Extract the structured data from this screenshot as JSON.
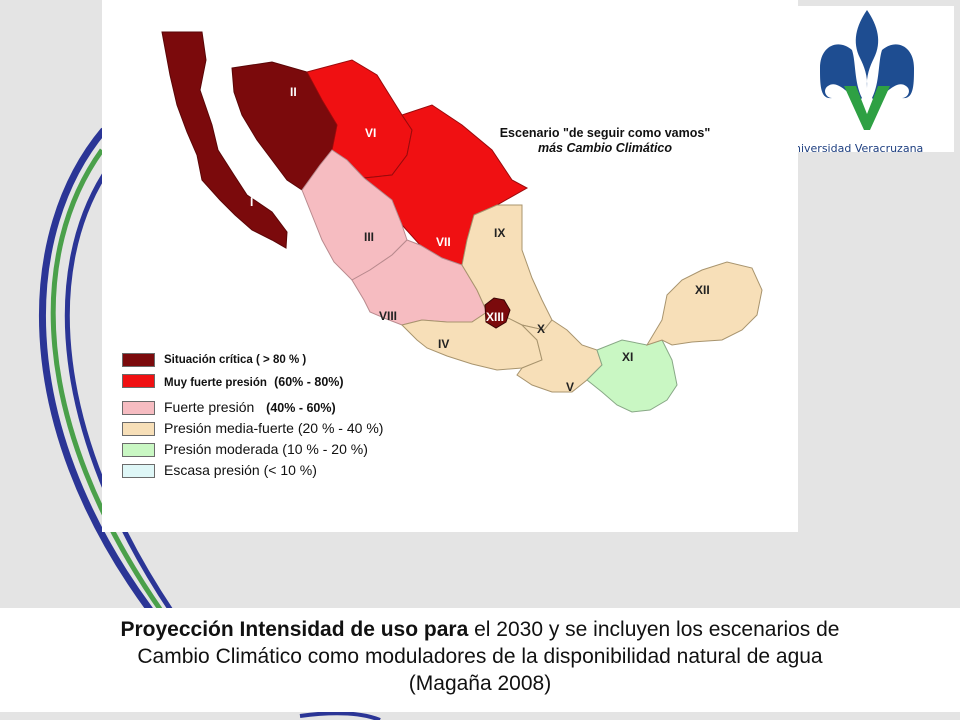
{
  "map": {
    "title_line1": "Escenario \"de seguir como vamos\"",
    "title_line2": "más Cambio Climático",
    "regions": [
      {
        "id": "I",
        "category": "critica"
      },
      {
        "id": "II",
        "category": "critica"
      },
      {
        "id": "III",
        "category": "fuerte"
      },
      {
        "id": "IV",
        "category": "media-fuerte"
      },
      {
        "id": "V",
        "category": "media-fuerte"
      },
      {
        "id": "VI",
        "category": "muy-fuerte"
      },
      {
        "id": "VII",
        "category": "muy-fuerte"
      },
      {
        "id": "VIII",
        "category": "fuerte"
      },
      {
        "id": "IX",
        "category": "media-fuerte"
      },
      {
        "id": "X",
        "category": "media-fuerte"
      },
      {
        "id": "XI",
        "category": "moderada"
      },
      {
        "id": "XII",
        "category": "media-fuerte"
      },
      {
        "id": "XIII",
        "category": "critica"
      }
    ],
    "legend": [
      {
        "label": "Situación crítica ( > 80 % )",
        "color": "#7b0a0c"
      },
      {
        "label": "Muy fuerte presión",
        "extra": "(60% - 80%)",
        "color": "#f01012"
      },
      {
        "label": "Fuerte presión",
        "extra": "(40% - 60%)",
        "color": "#f6bcc1"
      },
      {
        "label": "Presión media-fuerte  (20 % - 40 %)",
        "color": "#f7dfb8"
      },
      {
        "label": "Presión moderada  (10 % - 20 %)",
        "color": "#c9f7c3"
      },
      {
        "label": "Escasa presión  (< 10 %)",
        "color": "#dff7f7"
      }
    ]
  },
  "logo": {
    "text": "niversidad Veracruzana",
    "blue": "#1e4d91",
    "green": "#2ea043"
  },
  "caption": {
    "bold": "Proyección Intensidad de uso para",
    "rest_line1": " el 2030 y se incluyen los escenarios de",
    "line2": "Cambio Climático como moduladores de la disponibilidad natural de agua",
    "line3": "(Magaña 2008)"
  }
}
